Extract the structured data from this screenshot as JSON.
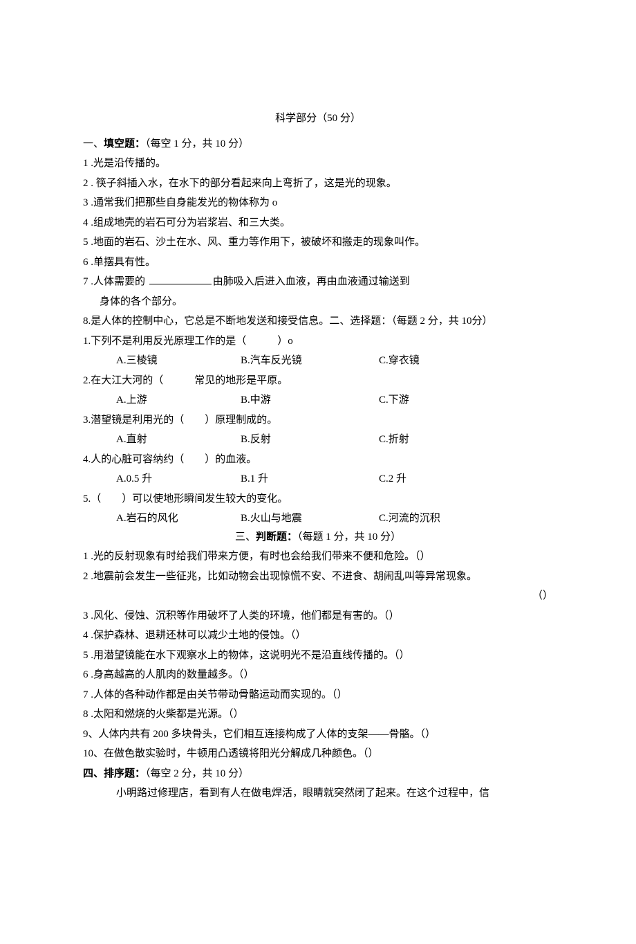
{
  "title": "科学部分（50 分）",
  "section1": {
    "head_prefix": "一、",
    "head_bold": "填空题：",
    "head_suffix": "（每空 1 分，共 10 分）",
    "q1": "1 .光是沿传播的。",
    "q2": "2 . 筷子斜插入水，在水下的部分看起来向上弯折了，这是光的现象。",
    "q3": "3 .通常我们把那些自身能发光的物体称为 o",
    "q4": "4 .组成地壳的岩石可分为岩浆岩、和三大类。",
    "q5": "5 .地面的岩石、沙土在水、风、重力等作用下，被破坏和搬走的现象叫作。",
    "q6": "6 .单摆具有性。",
    "q7a": "7 .人体需要的 ",
    "q7b": "由肺吸入后进入血液，再由血液通过输送到",
    "q7c": "身体的各个部分。",
    "q8": "8.是人体的控制中心，它总是不断地发送和接受信息。二、选择题：（每题 2 分，共 10分）"
  },
  "section2": {
    "q1": "1.下列不是利用反光原理工作的是（　　　）o",
    "q1A": "A.三棱镜",
    "q1B": "B.汽车反光镜",
    "q1C": "C.穿衣镜",
    "q2": "2.在大江大河的（　　　常见的地形是平原。",
    "q2A": "A.上游",
    "q2B": "B.中游",
    "q2C": "C.下游",
    "q3": "3.潜望镜是利用光的（　　）原理制成的。",
    "q3A": "A.直射",
    "q3B": "B.反射",
    "q3C": "C.折射",
    "q4": "4.人的心脏可容纳约（　　）的血液。",
    "q4A": "A.0.5 升",
    "q4B": "B.1 升",
    "q4C": "C.2 升",
    "q5": "5.（　　）可以使地形瞬间发生较大的变化。",
    "q5A": "A.岩石的风化",
    "q5B": "B.火山与地震",
    "q5C": "C.河流的沉积"
  },
  "section3": {
    "head_prefix": "三、",
    "head_bold": "判断题：",
    "head_suffix": "（每题 1 分，共 10 分）",
    "j1": "1 .光的反射现象有时给我们带来方便，有时也会给我们带来不便和危险。（）",
    "j2": "2 .地震前会发生一些征兆，比如动物会出现惊慌不安、不进食、胡闹乱叫等异常现象。",
    "j2p": "（）",
    "j3": "3 .风化、侵蚀、沉积等作用破坏了人类的环境，他们都是有害的。（）",
    "j4": "4 .保护森林、退耕还林可以减少土地的侵蚀。（）",
    "j5": "5 .用潜望镜能在水下观察水上的物体，这说明光不是沿直线传播的。（）",
    "j6": "6 .身高越高的人肌肉的数量越多。（）",
    "j7": "7 .人体的各种动作都是由关节带动骨骼运动而实现的。（）",
    "j8": "8 .太阳和燃烧的火柴都是光源。（）",
    "j9": "9、人体内共有 200 多块骨头，它们相互连接构成了人体的支架——骨骼。（）",
    "j10": "10、在做色散实验时，牛顿用凸透镜将阳光分解成几种颜色。（）"
  },
  "section4": {
    "head_bold": "四、排序题：",
    "head_suffix": "（每空 2 分，共 10 分）",
    "body": "小明路过修理店，看到有人在做电焊活，眼睛就突然闭了起来。在这个过程中，信"
  }
}
